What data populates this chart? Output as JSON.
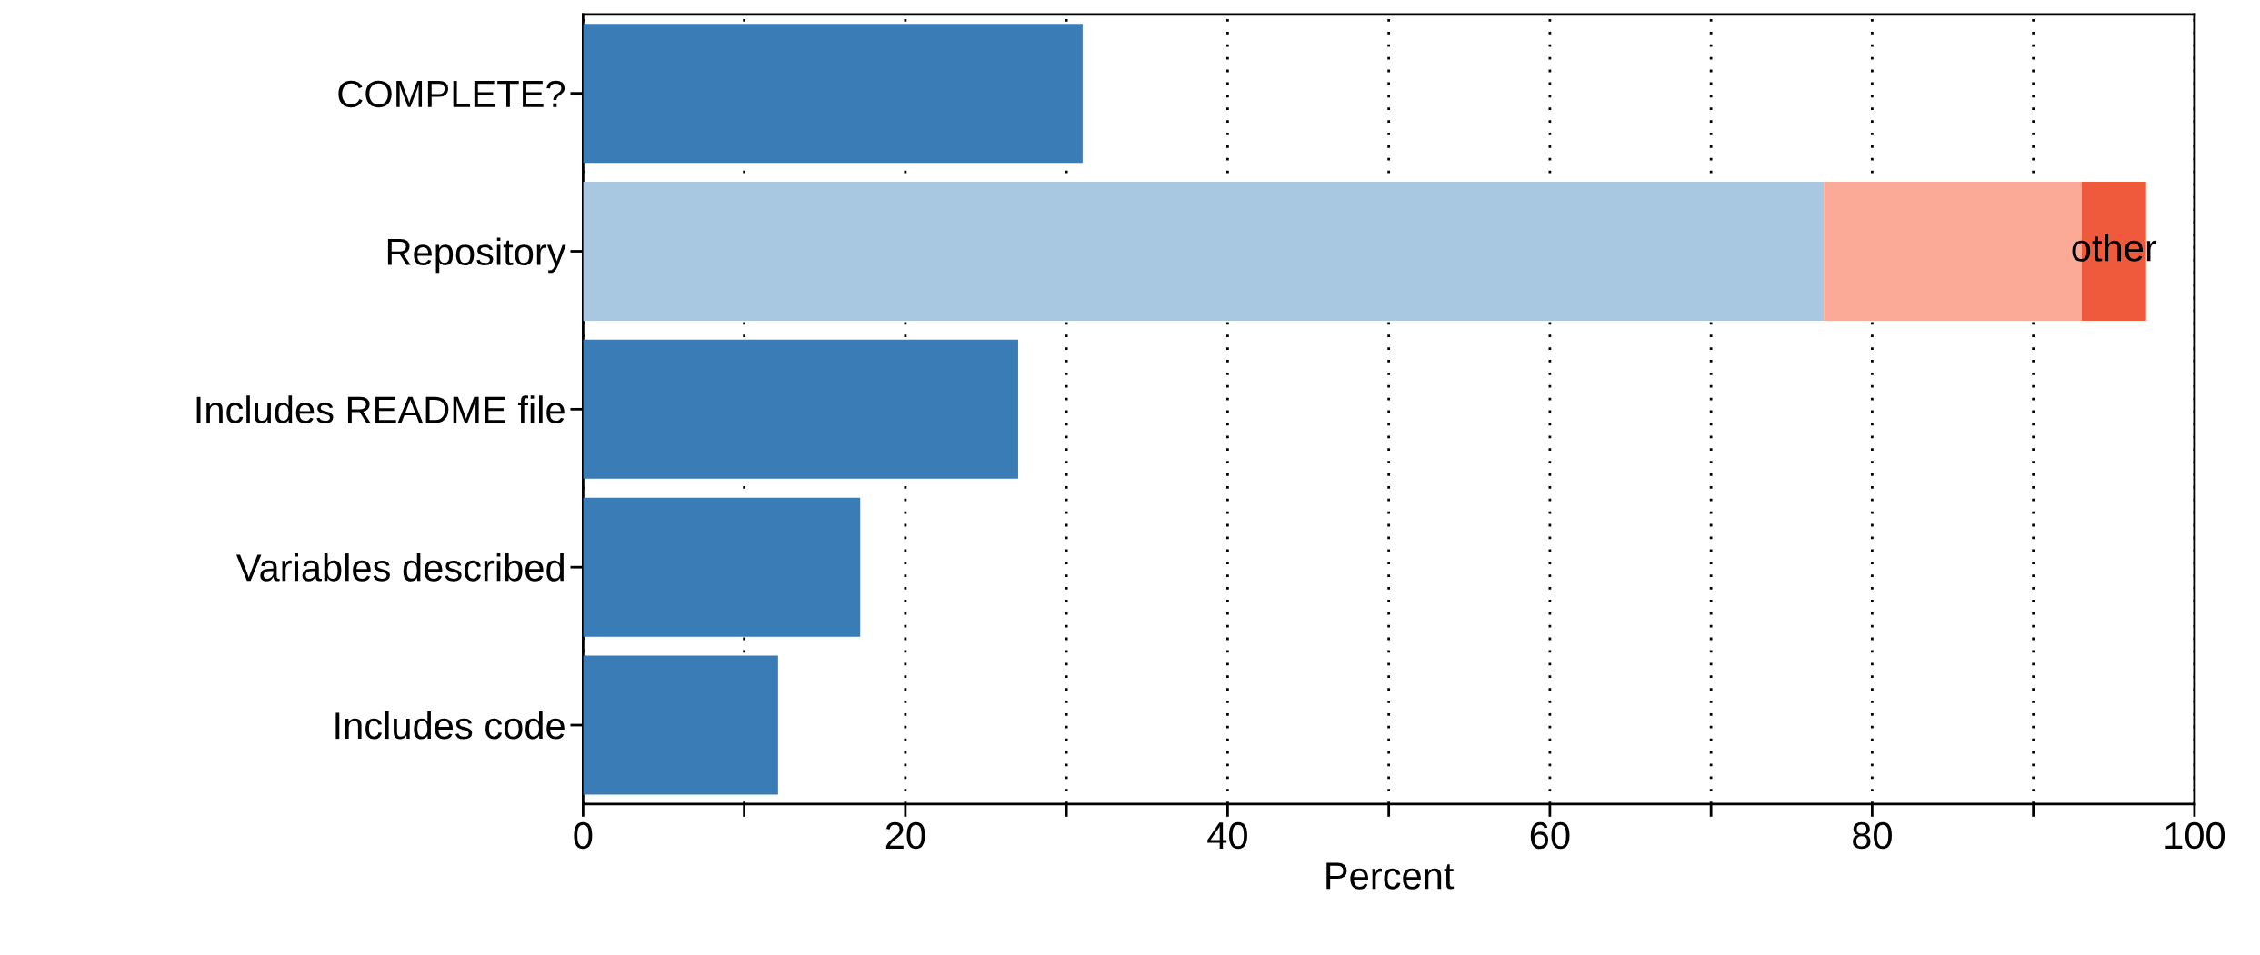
{
  "chart_data": {
    "type": "bar",
    "orientation": "horizontal",
    "stacked": true,
    "categories": [
      "COMPLETE?",
      "Repository",
      "Includes README file",
      "Variables described",
      "Includes code"
    ],
    "series": [
      {
        "color": "#3a7cb6",
        "values": [
          31,
          null,
          27,
          17.2,
          12.1
        ]
      },
      {
        "color": "#a8c8e2",
        "values": [
          null,
          77,
          null,
          null,
          null
        ]
      },
      {
        "color": "#fbaa98",
        "values": [
          null,
          16,
          null,
          null,
          null
        ]
      },
      {
        "name": "other",
        "color": "#f05a3c",
        "values": [
          null,
          4,
          null,
          null,
          null
        ]
      }
    ],
    "xlabel": "Percent",
    "xlim": [
      0,
      100
    ],
    "xticks": [
      0,
      {
        "value": 10,
        "label": null
      },
      20,
      {
        "value": 30,
        "label": null
      },
      40,
      {
        "value": 50,
        "label": null
      },
      60,
      {
        "value": 70,
        "label": null
      },
      80,
      {
        "value": 90,
        "label": null
      },
      100
    ],
    "grid": "x",
    "legend": false
  }
}
